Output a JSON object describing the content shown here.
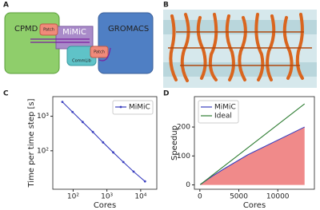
{
  "panel_labels": [
    "A",
    "B",
    "C",
    "D"
  ],
  "diagram": {
    "boxes": [
      "CPMD",
      "GROMACS",
      "MiMiC"
    ],
    "patches": [
      "Patch",
      "CommLib",
      "Patch"
    ]
  },
  "chart_data": [
    {
      "type": "line",
      "xlabel": "Cores",
      "ylabel": "Time per time step [s]",
      "xlog": true,
      "ylog": true,
      "xlim": [
        25,
        30000
      ],
      "ylim": [
        7.7,
        3700
      ],
      "xticks": [
        {
          "value": 100,
          "label": "10²"
        },
        {
          "value": 1000,
          "label": "10³"
        },
        {
          "value": 10000,
          "label": "10⁴"
        }
      ],
      "yticks": [
        {
          "value": 100,
          "label": "10²"
        },
        {
          "value": 1000,
          "label": "10³"
        }
      ],
      "x": [
        48,
        96,
        192,
        384,
        768,
        1536,
        3072,
        6144,
        13440
      ],
      "series": [
        {
          "name": "MiMiC",
          "color": "#3a3fbf",
          "marker": true,
          "values": [
            2600,
            1330,
            680,
            350,
            175,
            90,
            47,
            25,
            13
          ]
        }
      ],
      "legend": "upper right"
    },
    {
      "type": "line",
      "xlabel": "Cores",
      "ylabel": "Speedup",
      "xlim": [
        -700,
        14700
      ],
      "ylim": [
        -15,
        305
      ],
      "xticks": [
        0,
        5000,
        10000
      ],
      "yticks": [
        0,
        100,
        200
      ],
      "x": [
        48,
        96,
        192,
        384,
        768,
        1536,
        3072,
        6144,
        13440
      ],
      "series": [
        {
          "name": "MiMiC",
          "color": "#3a3fbf",
          "fill": "#f08a8a",
          "values": [
            1,
            1.95,
            3.8,
            7.4,
            14.9,
            28.9,
            55,
            104,
            200
          ]
        },
        {
          "name": "Ideal",
          "color": "#2e7d32",
          "values": [
            1,
            2,
            4,
            8,
            16,
            32,
            64,
            128,
            280
          ]
        }
      ],
      "legend": "upper left"
    }
  ]
}
